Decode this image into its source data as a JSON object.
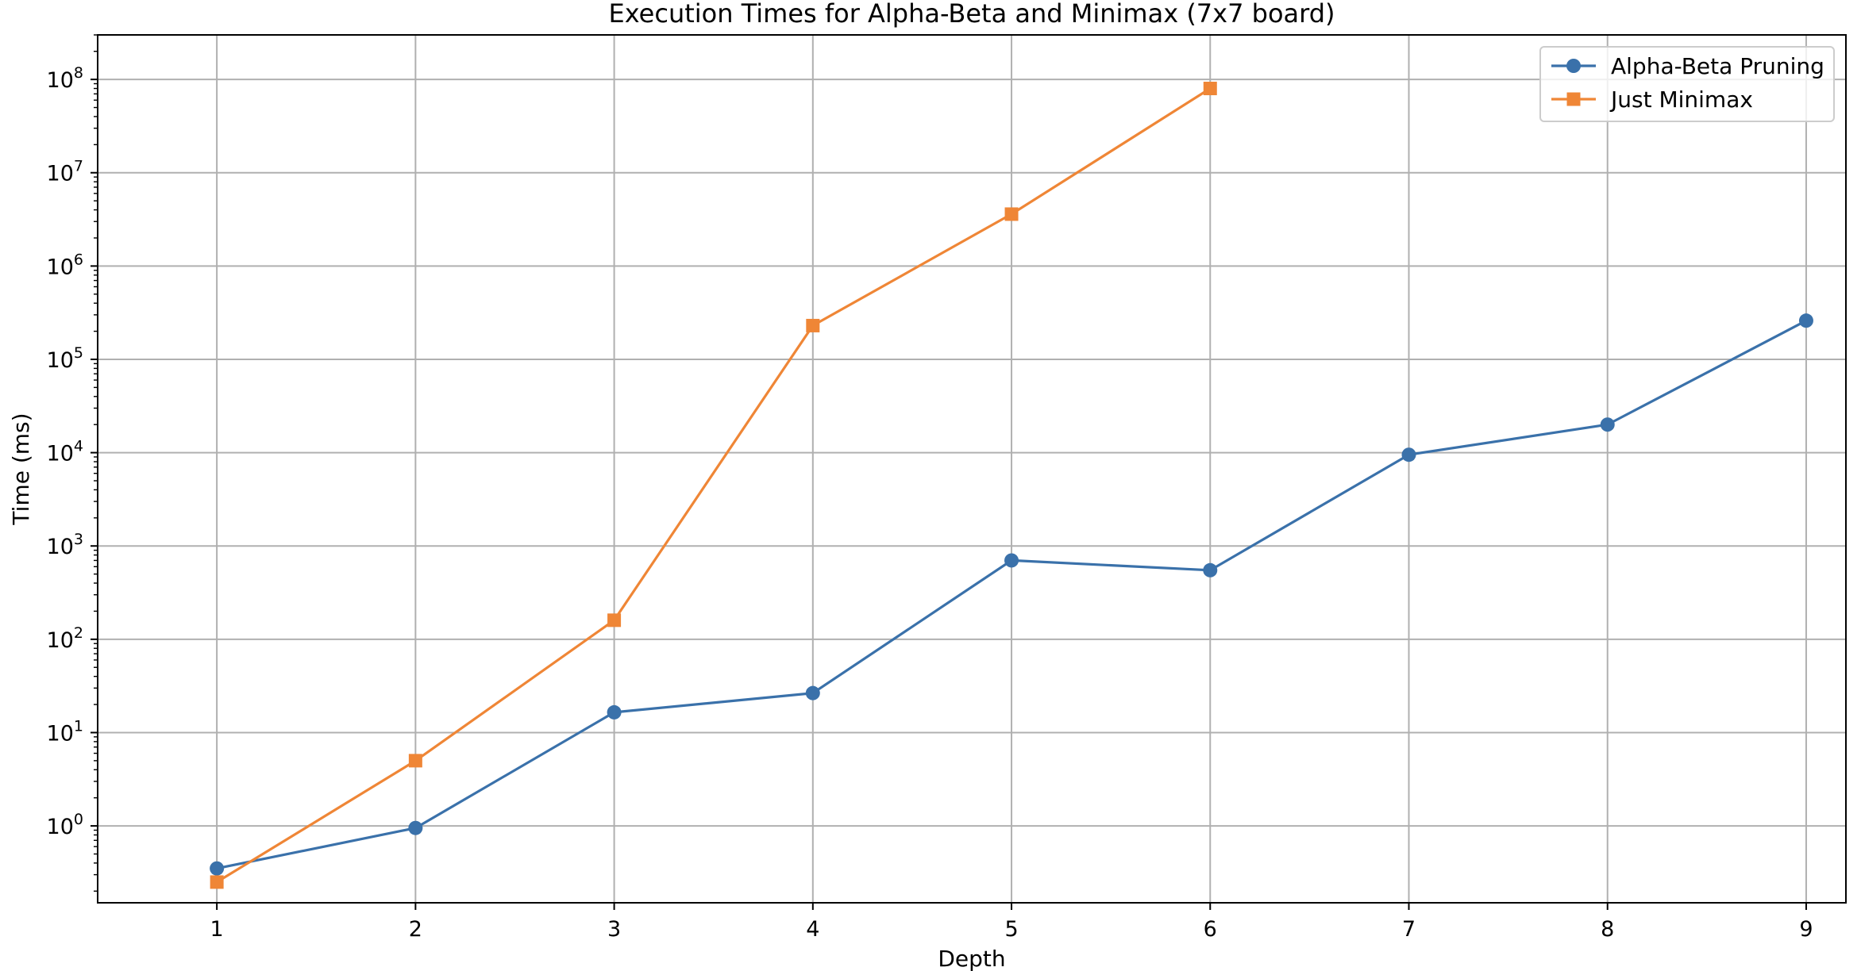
{
  "chart_data": {
    "type": "line",
    "title": "Execution Times for Alpha-Beta and Minimax (7x7 board)",
    "xlabel": "Depth",
    "ylabel": "Time (ms)",
    "x_scale": "linear",
    "y_scale": "log",
    "xlim": [
      0.4,
      9.2
    ],
    "ylim": [
      0.15,
      300000000
    ],
    "x_ticks": [
      1,
      2,
      3,
      4,
      5,
      6,
      7,
      8,
      9
    ],
    "y_ticks": [
      {
        "base": "10",
        "exp": "0",
        "value": 1
      },
      {
        "base": "10",
        "exp": "1",
        "value": 10
      },
      {
        "base": "10",
        "exp": "2",
        "value": 100
      },
      {
        "base": "10",
        "exp": "3",
        "value": 1000
      },
      {
        "base": "10",
        "exp": "4",
        "value": 10000
      },
      {
        "base": "10",
        "exp": "5",
        "value": 100000
      },
      {
        "base": "10",
        "exp": "6",
        "value": 1000000
      },
      {
        "base": "10",
        "exp": "7",
        "value": 10000000
      },
      {
        "base": "10",
        "exp": "8",
        "value": 100000000
      }
    ],
    "grid": true,
    "legend_position": "top-right",
    "series": [
      {
        "name": "Alpha-Beta Pruning",
        "color": "#3a71aa",
        "marker": "circle",
        "x": [
          1,
          2,
          3,
          4,
          5,
          6,
          7,
          8,
          9
        ],
        "y": [
          0.35,
          0.95,
          16.5,
          26.5,
          700,
          550,
          9500,
          20000,
          260000
        ]
      },
      {
        "name": "Just Minimax",
        "color": "#ef8636",
        "marker": "square",
        "x": [
          1,
          2,
          3,
          4,
          5,
          6
        ],
        "y": [
          0.25,
          5,
          160,
          230000,
          3600000,
          80000000
        ]
      }
    ]
  }
}
